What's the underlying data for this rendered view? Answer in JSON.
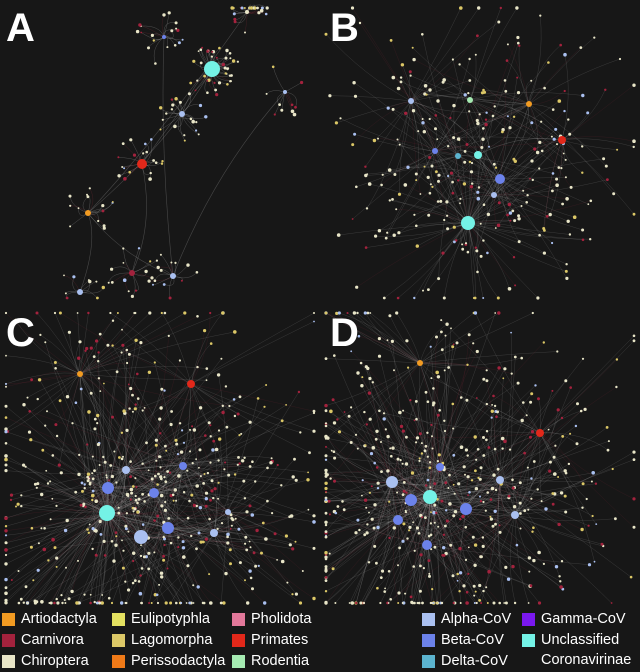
{
  "panels": [
    {
      "letter": "A",
      "edge_color": "#b8b8b8",
      "density": 1
    },
    {
      "letter": "B",
      "edge_color": "#b8b8b8",
      "density": 2
    },
    {
      "letter": "C",
      "edge_color": "#b8b8b8",
      "density": 3
    },
    {
      "letter": "D",
      "edge_color": "#b8b8b8",
      "density": 3
    }
  ],
  "legend": {
    "hosts": [
      {
        "label": "Artiodactyla",
        "color": "#f29b22"
      },
      {
        "label": "Carnivora",
        "color": "#a3223d"
      },
      {
        "label": "Chiroptera",
        "color": "#e9e6c8"
      },
      {
        "label": "Eulipotyphla",
        "color": "#e3e060"
      },
      {
        "label": "Lagomorpha",
        "color": "#dcc867"
      },
      {
        "label": "Perissodactyla",
        "color": "#f07a18"
      },
      {
        "label": "Pholidota",
        "color": "#e2789a"
      },
      {
        "label": "Primates",
        "color": "#e2281a"
      },
      {
        "label": "Rodentia",
        "color": "#a6ebb2"
      }
    ],
    "viruses": [
      {
        "label": "Alpha-CoV",
        "color": "#aac0f0"
      },
      {
        "label": "Beta-CoV",
        "color": "#6c82ea"
      },
      {
        "label": "Delta-CoV",
        "color": "#5cb4cf"
      },
      {
        "label": "Gamma-CoV",
        "color": "#7a18ef"
      },
      {
        "label": "Unclassified",
        "color": "#74f2e6"
      }
    ],
    "unclassified_continuation": "Coronavirinae"
  }
}
